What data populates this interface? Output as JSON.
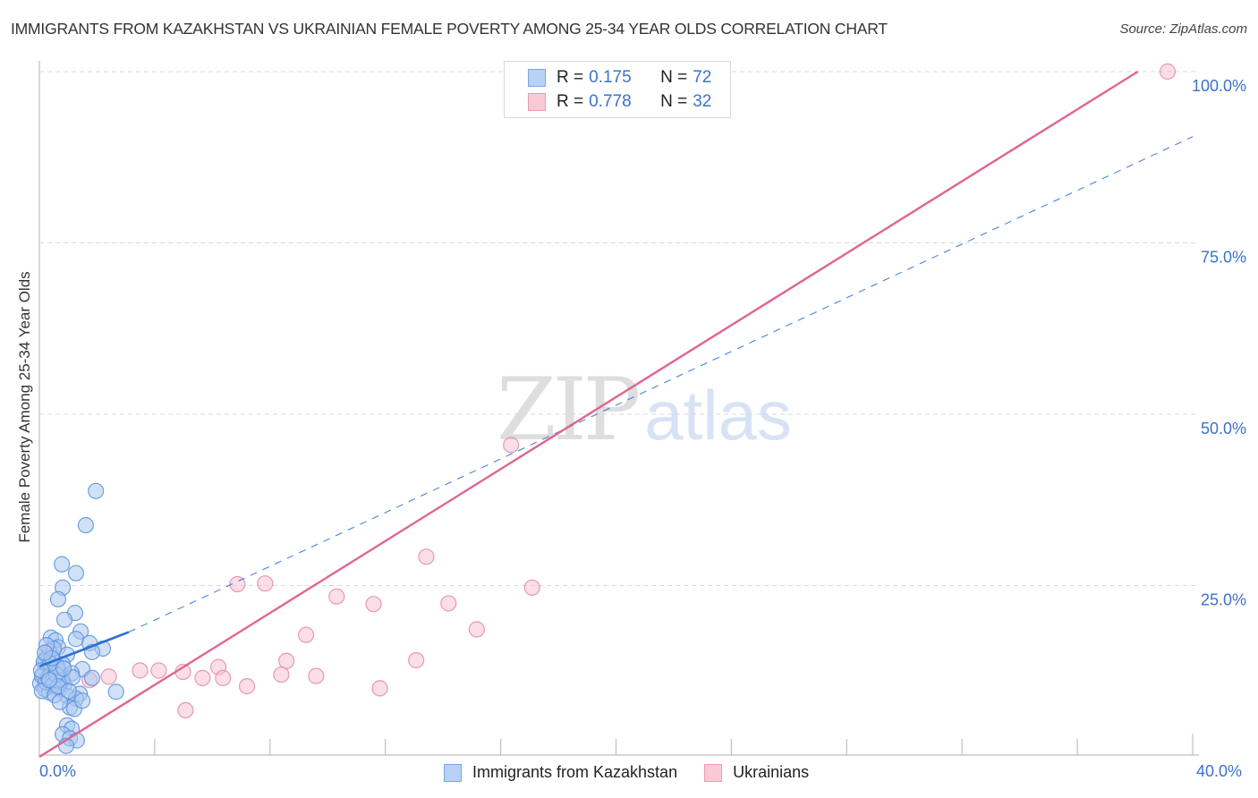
{
  "header": {
    "title": "IMMIGRANTS FROM KAZAKHSTAN VS UKRAINIAN FEMALE POVERTY AMONG 25-34 YEAR OLDS CORRELATION CHART",
    "source": "Source: ZipAtlas.com"
  },
  "legend_top": {
    "rows": [
      {
        "r_label": "R = ",
        "r_value": "0.175",
        "n_label": "N = ",
        "n_value": "72"
      },
      {
        "r_label": "R = ",
        "r_value": "0.778",
        "n_label": "N = ",
        "n_value": "32"
      }
    ]
  },
  "legend_bottom": {
    "items": [
      {
        "label": "Immigrants from Kazakhstan"
      },
      {
        "label": "Ukrainians"
      }
    ]
  },
  "axes": {
    "ylabel": "Female Poverty Among 25-34 Year Olds",
    "x_min_label": "0.0%",
    "x_max_label": "40.0%",
    "y_ticks": [
      "25.0%",
      "50.0%",
      "75.0%",
      "100.0%"
    ]
  },
  "watermark": {
    "zip": "ZIP",
    "atlas": "atlas"
  },
  "colors": {
    "blue_fill": "#a9c8f0",
    "blue_stroke": "#5b8fdc",
    "blue_line": "#2f6fd0",
    "pink_fill": "#f7c3d3",
    "pink_stroke": "#e38aa7",
    "pink_line": "#e06590",
    "tick_text": "#3d72c8"
  },
  "chart_data": {
    "type": "scatter",
    "title": "IMMIGRANTS FROM KAZAKHSTAN VS UKRAINIAN FEMALE POVERTY AMONG 25-34 YEAR OLDS CORRELATION CHART",
    "xlabel": "",
    "ylabel": "Female Poverty Among 25-34 Year Olds",
    "xlim": [
      0,
      40
    ],
    "ylim": [
      0,
      100
    ],
    "x_tick_labels": [
      "0.0%",
      "40.0%"
    ],
    "y_tick_labels": [
      "25.0%",
      "50.0%",
      "75.0%",
      "100.0%"
    ],
    "grid": true,
    "legend_position": "bottom",
    "series": [
      {
        "name": "Immigrants from Kazakhstan",
        "R": 0.175,
        "N": 72,
        "trend": {
          "x0": 0,
          "y0": 13.2,
          "x1": 3.1,
          "y1": 18.2,
          "dashed_extension_to": [
            40,
            90.5
          ]
        },
        "points": [
          [
            1.96,
            38.8
          ],
          [
            1.61,
            33.8
          ],
          [
            0.78,
            28.1
          ],
          [
            1.27,
            26.8
          ],
          [
            0.81,
            24.7
          ],
          [
            0.65,
            23.0
          ],
          [
            1.24,
            21.0
          ],
          [
            0.87,
            20.0
          ],
          [
            1.43,
            18.3
          ],
          [
            0.4,
            17.4
          ],
          [
            0.56,
            17.0
          ],
          [
            1.27,
            17.2
          ],
          [
            1.74,
            16.6
          ],
          [
            2.2,
            15.8
          ],
          [
            1.83,
            15.3
          ],
          [
            0.65,
            16.0
          ],
          [
            0.34,
            15.4
          ],
          [
            0.96,
            14.9
          ],
          [
            0.5,
            14.0
          ],
          [
            0.19,
            13.6
          ],
          [
            0.81,
            13.5
          ],
          [
            0.34,
            12.9
          ],
          [
            0.68,
            12.5
          ],
          [
            1.49,
            12.8
          ],
          [
            1.12,
            12.2
          ],
          [
            1.83,
            11.5
          ],
          [
            0.25,
            11.3
          ],
          [
            0.56,
            11.0
          ],
          [
            0.03,
            10.7
          ],
          [
            0.87,
            10.6
          ],
          [
            0.43,
            10.2
          ],
          [
            0.19,
            9.9
          ],
          [
            0.71,
            9.9
          ],
          [
            1.4,
            9.2
          ],
          [
            2.66,
            9.5
          ],
          [
            0.96,
            8.9
          ],
          [
            1.27,
            8.5
          ],
          [
            0.34,
            9.4
          ],
          [
            1.06,
            7.2
          ],
          [
            1.21,
            7.0
          ],
          [
            1.49,
            8.2
          ],
          [
            0.96,
            4.6
          ],
          [
            1.12,
            4.1
          ],
          [
            0.81,
            3.3
          ],
          [
            1.06,
            2.7
          ],
          [
            1.3,
            2.4
          ],
          [
            0.93,
            1.6
          ],
          [
            0.12,
            12.0
          ],
          [
            0.28,
            14.6
          ],
          [
            0.5,
            15.8
          ],
          [
            0.09,
            11.8
          ],
          [
            0.22,
            10.9
          ],
          [
            0.4,
            12.4
          ],
          [
            0.62,
            13.1
          ],
          [
            0.15,
            13.9
          ],
          [
            0.31,
            11.6
          ],
          [
            0.47,
            10.5
          ],
          [
            0.09,
            9.6
          ],
          [
            0.78,
            11.2
          ],
          [
            0.59,
            12.0
          ],
          [
            0.37,
            13.6
          ],
          [
            0.25,
            16.3
          ],
          [
            0.53,
            9.0
          ],
          [
            0.71,
            8.0
          ],
          [
            1.15,
            11.6
          ],
          [
            0.43,
            14.4
          ],
          [
            0.19,
            15.2
          ],
          [
            0.65,
            10.3
          ],
          [
            0.84,
            12.9
          ],
          [
            0.06,
            12.6
          ],
          [
            0.34,
            11.2
          ],
          [
            1.02,
            9.6
          ]
        ]
      },
      {
        "name": "Ukrainians",
        "R": 0.778,
        "N": 32,
        "trend": {
          "x0": 0,
          "y0": 0,
          "x1": 38.1,
          "y1": 100
        },
        "points": [
          [
            17.97,
            100
          ],
          [
            19.83,
            100
          ],
          [
            39.13,
            100
          ],
          [
            16.36,
            45.5
          ],
          [
            13.42,
            29.2
          ],
          [
            6.87,
            25.2
          ],
          [
            7.83,
            25.3
          ],
          [
            10.31,
            23.4
          ],
          [
            11.59,
            22.3
          ],
          [
            14.19,
            22.4
          ],
          [
            15.17,
            18.6
          ],
          [
            17.09,
            24.7
          ],
          [
            9.25,
            17.8
          ],
          [
            8.57,
            14.0
          ],
          [
            13.07,
            14.1
          ],
          [
            6.21,
            13.1
          ],
          [
            2.41,
            11.7
          ],
          [
            3.49,
            12.6
          ],
          [
            4.14,
            12.6
          ],
          [
            4.98,
            12.4
          ],
          [
            5.66,
            11.5
          ],
          [
            6.37,
            11.5
          ],
          [
            7.2,
            10.3
          ],
          [
            8.39,
            12.0
          ],
          [
            9.6,
            11.8
          ],
          [
            11.81,
            10.0
          ],
          [
            5.07,
            6.8
          ],
          [
            0.47,
            15.6
          ],
          [
            0.81,
            11.4
          ],
          [
            0.25,
            11.0
          ],
          [
            1.74,
            11.2
          ],
          [
            0.56,
            10.3
          ]
        ]
      }
    ]
  }
}
